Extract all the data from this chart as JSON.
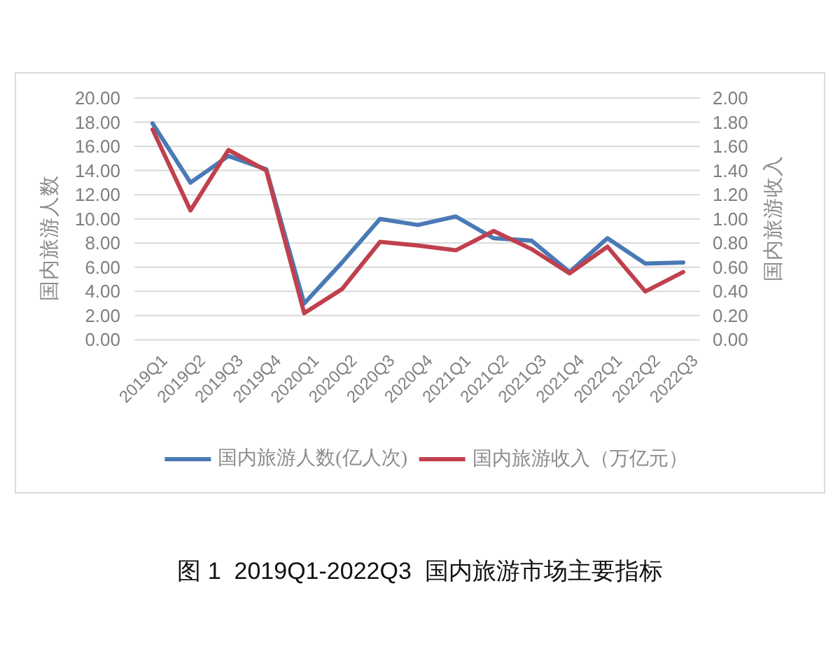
{
  "chart_data": {
    "type": "line",
    "title": "图 1  2019Q1-2022Q3  国内旅游市场主要指标",
    "ylabel": "国内旅游人数",
    "y2label": "国内旅游收入",
    "categories": [
      "2019Q1",
      "2019Q2",
      "2019Q3",
      "2019Q4",
      "2020Q1",
      "2020Q2",
      "2020Q3",
      "2020Q4",
      "2021Q1",
      "2021Q2",
      "2021Q3",
      "2021Q4",
      "2022Q1",
      "2022Q2",
      "2022Q3"
    ],
    "series": [
      {
        "name": "国内旅游人数(亿人次)",
        "color": "#4a7ab5",
        "values": [
          17.9,
          13.0,
          15.2,
          14.1,
          3.0,
          6.4,
          10.0,
          9.5,
          10.2,
          8.4,
          8.2,
          5.6,
          8.4,
          6.3,
          6.4
        ]
      },
      {
        "name": "国内旅游收入（万亿元）",
        "color": "#c0404d",
        "axis": "y2",
        "values": [
          1.74,
          1.07,
          1.57,
          1.4,
          0.22,
          0.42,
          0.81,
          0.78,
          0.74,
          0.9,
          0.75,
          0.55,
          0.77,
          0.4,
          0.56
        ]
      }
    ],
    "ylim": [
      0,
      20
    ],
    "yticks": [
      {
        "value": 0,
        "label": "0.00"
      },
      {
        "value": 2,
        "label": "2.00"
      },
      {
        "value": 4,
        "label": "4.00"
      },
      {
        "value": 6,
        "label": "6.00"
      },
      {
        "value": 8,
        "label": "8.00"
      },
      {
        "value": 10,
        "label": "10.00"
      },
      {
        "value": 12,
        "label": "12.00"
      },
      {
        "value": 14,
        "label": "14.00"
      },
      {
        "value": 16,
        "label": "16.00"
      },
      {
        "value": 18,
        "label": "18.00"
      },
      {
        "value": 20,
        "label": "20.00"
      }
    ],
    "y2lim": [
      0,
      2
    ],
    "y2ticks": [
      {
        "value": 0,
        "label": "0.00"
      },
      {
        "value": 0.2,
        "label": "0.20"
      },
      {
        "value": 0.4,
        "label": "0.40"
      },
      {
        "value": 0.6,
        "label": "0.60"
      },
      {
        "value": 0.8,
        "label": "0.80"
      },
      {
        "value": 1,
        "label": "1.00"
      },
      {
        "value": 1.2,
        "label": "1.20"
      },
      {
        "value": 1.4,
        "label": "1.40"
      },
      {
        "value": 1.6,
        "label": "1.60"
      },
      {
        "value": 1.8,
        "label": "1.80"
      },
      {
        "value": 2,
        "label": "2.00"
      }
    ],
    "grid": "y",
    "legend": "bottom",
    "line_style": "solid"
  }
}
